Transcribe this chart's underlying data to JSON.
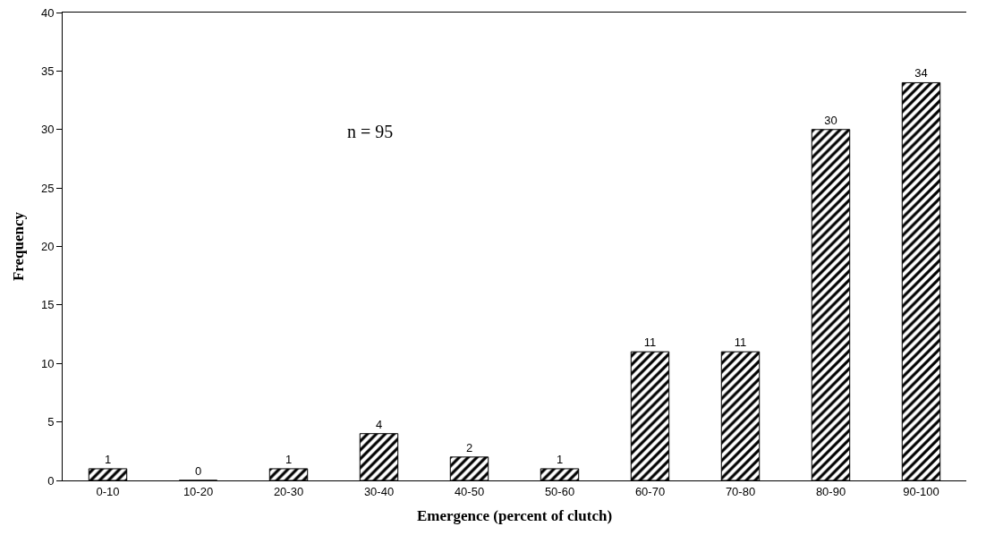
{
  "chart_data": {
    "type": "bar",
    "xlabel": "Emergence (percent of clutch)",
    "ylabel": "Frequency",
    "categories": [
      "0-10",
      "10-20",
      "20-30",
      "30-40",
      "40-50",
      "50-60",
      "60-70",
      "70-80",
      "80-90",
      "90-100"
    ],
    "values": [
      1,
      0,
      1,
      4,
      2,
      1,
      11,
      11,
      30,
      34
    ],
    "color": "#000000",
    "ylim": [
      0,
      40
    ],
    "yticks": [
      0,
      5,
      10,
      15,
      20,
      25,
      30,
      35,
      40
    ],
    "grid": false,
    "data_labels": true,
    "annotations": [
      "n = 95"
    ]
  }
}
